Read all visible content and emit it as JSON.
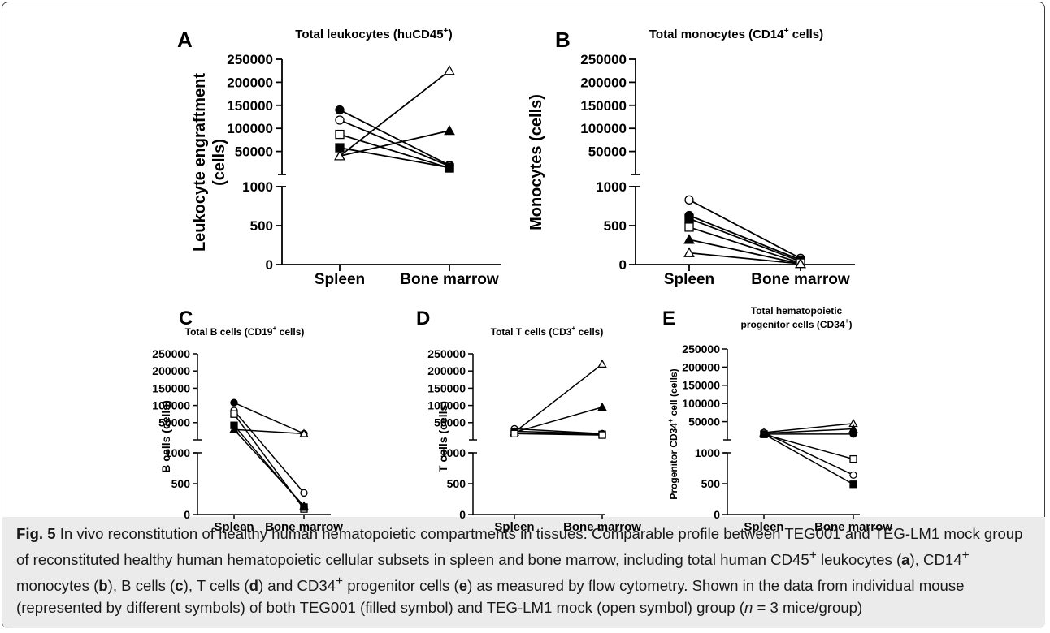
{
  "figure": {
    "symbol_legend": [
      {
        "symbol": "filled-circle",
        "filled": true
      },
      {
        "symbol": "filled-triangle",
        "filled": true
      },
      {
        "symbol": "filled-square",
        "filled": true
      },
      {
        "symbol": "open-circle",
        "filled": false
      },
      {
        "symbol": "open-triangle",
        "filled": false
      },
      {
        "symbol": "open-square",
        "filled": false
      }
    ]
  },
  "caption": {
    "fig_label": "Fig. 5",
    "text_1": " In vivo reconstitution of healthy human hematopoietic compartments in tissues. Comparable profile between TEG001 and TEG-LM1 mock group of reconstituted healthy human hematopoietic cellular subsets in spleen and bone marrow, including total human CD45",
    "sup_1": "+",
    "text_2": " leukocytes (",
    "ref_a": "a",
    "text_3": "), CD14",
    "sup_2": "+",
    "text_4": " monocytes (",
    "ref_b": "b",
    "text_5": "), B cells (",
    "ref_c": "c",
    "text_6": "), T cells (",
    "ref_d": "d",
    "text_7": ") and CD34",
    "sup_3": "+",
    "text_8": " progenitor cells (",
    "ref_e": "e",
    "text_9": ") as measured by flow cytometry. Shown in the data from individual mouse (represented by different symbols) of both TEG001 (filled symbol) and TEG-LM1 mock (open symbol) group (",
    "n_italic": "n",
    "text_10": " = 3 mice/group)"
  },
  "chart_data": [
    {
      "type": "scatter",
      "panel": "A",
      "title": "Total leukocytes (huCD45",
      "title_sup": "+",
      "title_end": ")",
      "ylabel_1": "Leukocyte engraftment",
      "ylabel_2": "(cells)",
      "categories": [
        "Spleen",
        "Bone marrow"
      ],
      "y_lower_ticks": [
        0,
        500,
        1000
      ],
      "y_upper_ticks": [
        "50000",
        "100000",
        "150000",
        "200000",
        "250000"
      ],
      "y_lower_range": [
        0,
        1000
      ],
      "y_upper_range": [
        0,
        250000
      ],
      "series": [
        {
          "symbol": "filled-circle",
          "values": [
            140000,
            20000
          ]
        },
        {
          "symbol": "open-circle",
          "values": [
            118000,
            18000
          ]
        },
        {
          "symbol": "open-square",
          "values": [
            87000,
            14000
          ]
        },
        {
          "symbol": "filled-square",
          "values": [
            58000,
            15000
          ]
        },
        {
          "symbol": "filled-triangle",
          "values": [
            40000,
            95000
          ]
        },
        {
          "symbol": "open-triangle",
          "values": [
            40000,
            225000
          ]
        }
      ]
    },
    {
      "type": "scatter",
      "panel": "B",
      "title": "Total monocytes (CD14",
      "title_sup": "+",
      "title_end": " cells)",
      "ylabel_1": "Monocytes (cells)",
      "ylabel_2": "",
      "categories": [
        "Spleen",
        "Bone marrow"
      ],
      "y_lower_ticks": [
        0,
        500,
        1000
      ],
      "y_upper_ticks": [
        "50000",
        "100000",
        "150000",
        "200000",
        "250000"
      ],
      "y_lower_range": [
        0,
        1000
      ],
      "y_upper_range": [
        0,
        250000
      ],
      "series": [
        {
          "symbol": "open-circle",
          "values": [
            830,
            80
          ]
        },
        {
          "symbol": "filled-circle",
          "values": [
            630,
            60
          ]
        },
        {
          "symbol": "filled-square",
          "values": [
            590,
            40
          ]
        },
        {
          "symbol": "open-square",
          "values": [
            480,
            20
          ]
        },
        {
          "symbol": "filled-triangle",
          "values": [
            320,
            10
          ]
        },
        {
          "symbol": "open-triangle",
          "values": [
            150,
            10
          ]
        }
      ]
    },
    {
      "type": "scatter",
      "panel": "C",
      "title": "Total B cells (CD19",
      "title_sup": "+",
      "title_end": " cells)",
      "ylabel_1": "B cells (cells)",
      "ylabel_2": "",
      "categories": [
        "Spleen",
        "Bone marrow"
      ],
      "y_lower_ticks": [
        0,
        500,
        1000
      ],
      "y_upper_ticks": [
        "50000",
        "100000",
        "150000",
        "200000",
        "250000"
      ],
      "y_lower_range": [
        0,
        1000
      ],
      "y_upper_range": [
        0,
        250000
      ],
      "series": [
        {
          "symbol": "filled-circle",
          "values": [
            108000,
            18000
          ]
        },
        {
          "symbol": "open-circle",
          "values": [
            85000,
            350
          ]
        },
        {
          "symbol": "open-square",
          "values": [
            75000,
            90
          ]
        },
        {
          "symbol": "filled-square",
          "values": [
            42000,
            120
          ]
        },
        {
          "symbol": "open-triangle",
          "values": [
            30000,
            18000
          ]
        },
        {
          "symbol": "filled-triangle",
          "values": [
            30000,
            140
          ]
        }
      ]
    },
    {
      "type": "scatter",
      "panel": "D",
      "title": "Total T cells (CD3",
      "title_sup": "+",
      "title_end": " cells)",
      "ylabel_1": "T cells (cells)",
      "ylabel_2": "",
      "categories": [
        "Spleen",
        "Bone marrow"
      ],
      "y_lower_ticks": [
        0,
        500,
        1000
      ],
      "y_upper_ticks": [
        "50000",
        "100000",
        "150000",
        "200000",
        "250000"
      ],
      "y_lower_range": [
        0,
        1000
      ],
      "y_upper_range": [
        0,
        250000
      ],
      "series": [
        {
          "symbol": "open-triangle",
          "values": [
            22000,
            220000
          ]
        },
        {
          "symbol": "filled-triangle",
          "values": [
            22000,
            95000
          ]
        },
        {
          "symbol": "open-circle",
          "values": [
            32000,
            18000
          ]
        },
        {
          "symbol": "filled-circle",
          "values": [
            25000,
            18000
          ]
        },
        {
          "symbol": "filled-square",
          "values": [
            20000,
            16000
          ]
        },
        {
          "symbol": "open-square",
          "values": [
            18000,
            14000
          ]
        }
      ]
    },
    {
      "type": "scatter",
      "panel": "E",
      "title": "Total hematopoietic",
      "title_line2": "progenitor cells (CD34",
      "title_sup": "+",
      "title_end": ")",
      "ylabel_1": "Progenitor CD34",
      "ylabel_sup": "+",
      "ylabel_2": " cell (cells)",
      "categories": [
        "Spleen",
        "Bone marrow"
      ],
      "y_lower_ticks": [
        0,
        500,
        1000
      ],
      "y_upper_ticks": [
        "50000",
        "100000",
        "150000",
        "200000",
        "250000"
      ],
      "y_lower_range": [
        0,
        1000
      ],
      "y_upper_range": [
        0,
        250000
      ],
      "series": [
        {
          "symbol": "open-triangle",
          "values": [
            20000,
            45000
          ]
        },
        {
          "symbol": "filled-triangle",
          "values": [
            18000,
            30000
          ]
        },
        {
          "symbol": "filled-circle",
          "values": [
            16000,
            16000
          ]
        },
        {
          "symbol": "open-square",
          "values": [
            15000,
            900
          ]
        },
        {
          "symbol": "open-circle",
          "values": [
            20000,
            640
          ]
        },
        {
          "symbol": "filled-square",
          "values": [
            16000,
            490
          ]
        }
      ]
    }
  ]
}
